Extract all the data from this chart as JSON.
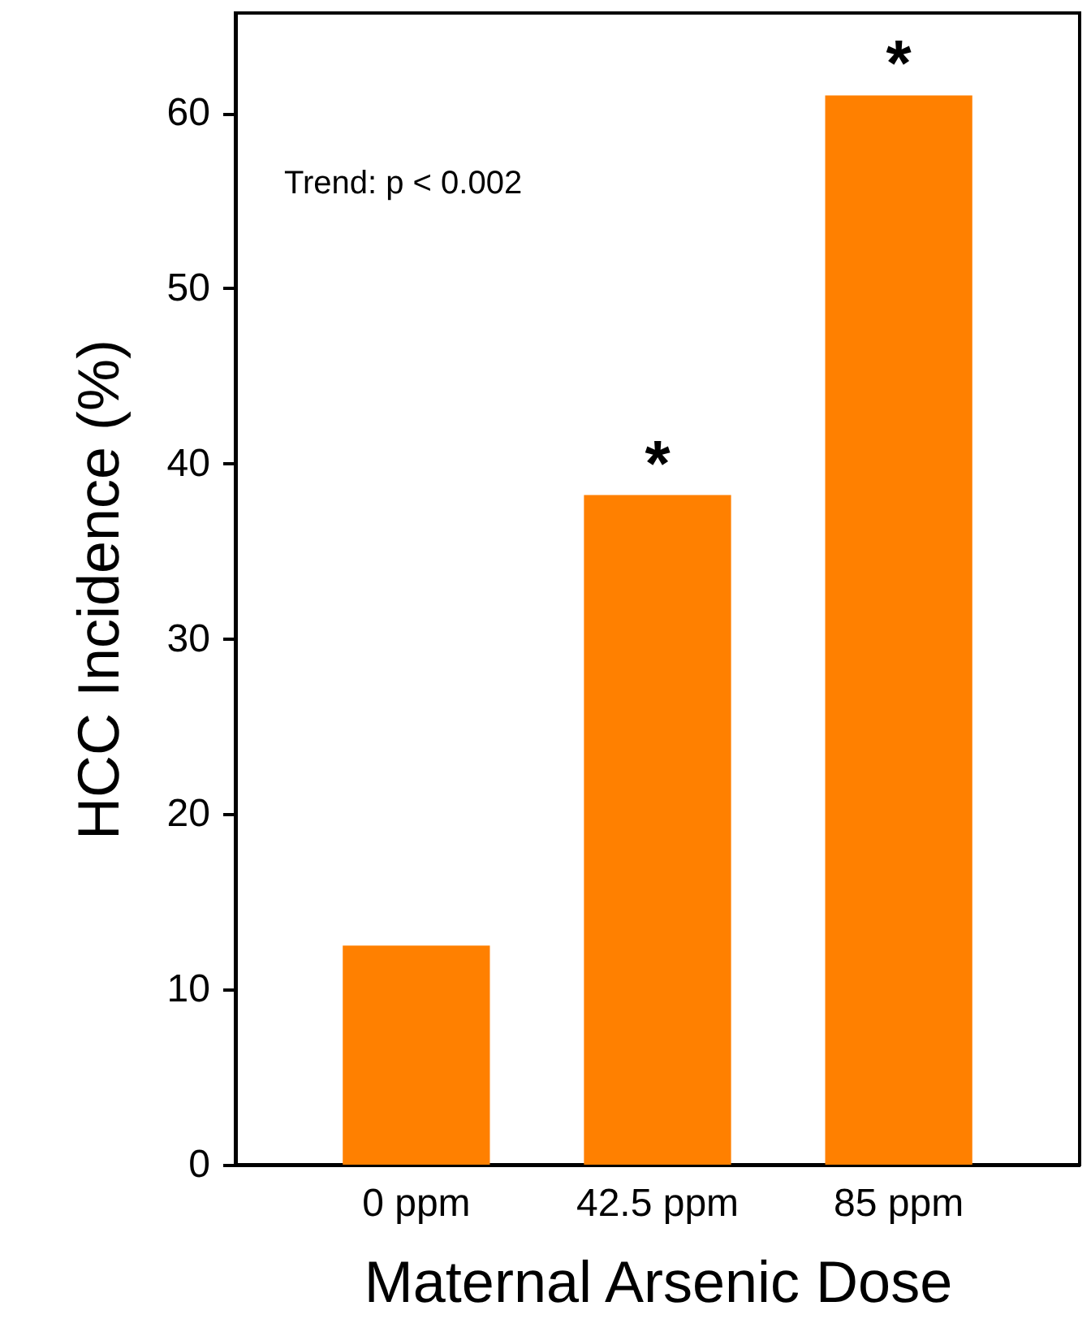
{
  "chart_data": {
    "type": "bar",
    "xlabel": "Maternal Arsenic Dose",
    "ylabel": "HCC Incidence (%)",
    "categories": [
      "0 ppm",
      "42.5 ppm",
      "85 ppm"
    ],
    "values": [
      12.5,
      38.2,
      61.0
    ],
    "color": "#ff8000",
    "ylim": [
      0,
      65.7
    ],
    "yticks": [
      0,
      10,
      20,
      30,
      40,
      50,
      60
    ],
    "grid": false,
    "annotations": [
      "Trend: p < 0.002",
      {
        "text": "*",
        "x": "42.5 ppm",
        "y": 38.2
      },
      {
        "text": "*",
        "x": "85 ppm",
        "y": 61.0
      }
    ]
  }
}
